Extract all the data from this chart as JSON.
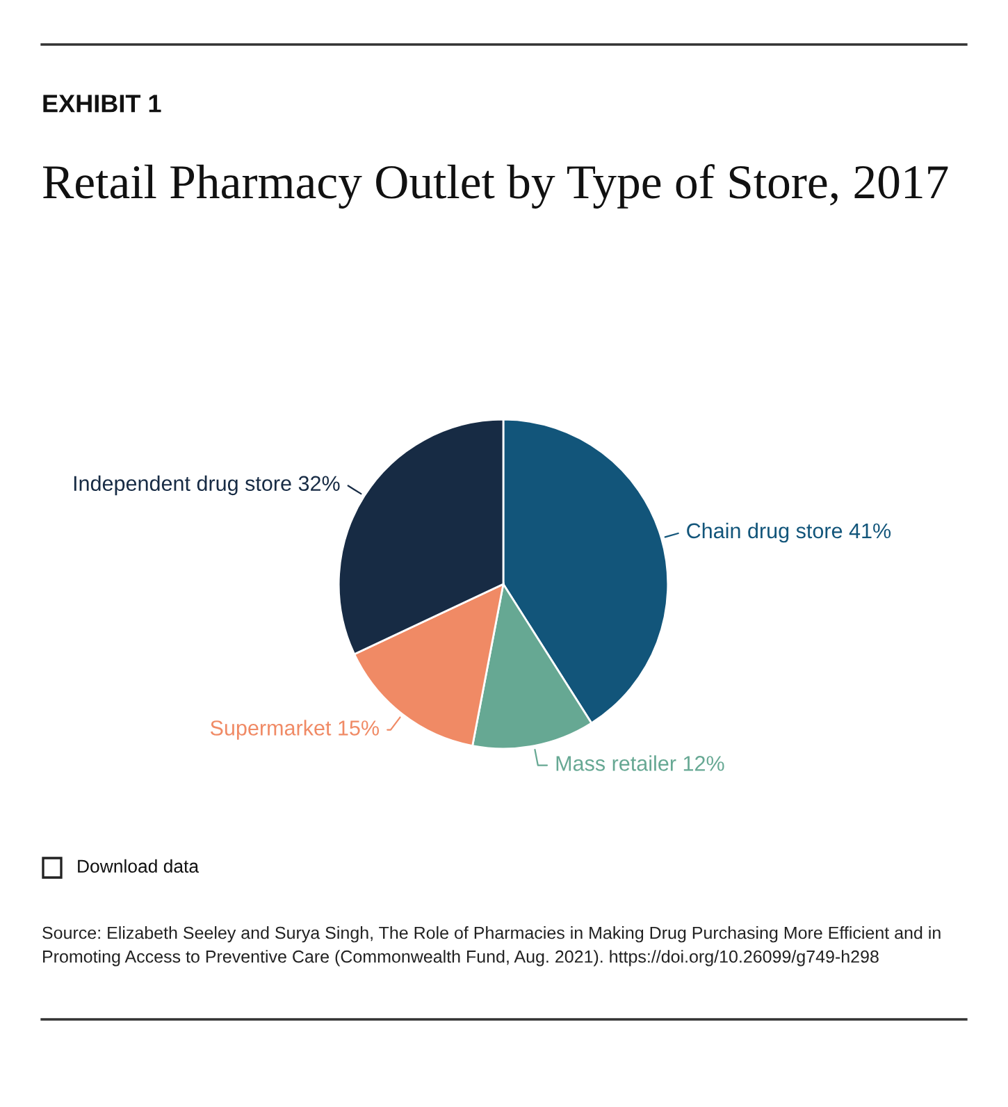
{
  "chart_data": {
    "type": "pie",
    "title": "Retail Pharmacy Outlet by Type of Store, 2017",
    "categories": [
      "Chain drug store",
      "Mass retailer",
      "Supermarket",
      "Independent drug store"
    ],
    "values": [
      41,
      12,
      15,
      32
    ],
    "colors": [
      "#12557a",
      "#66a893",
      "#f08a65",
      "#172b44"
    ],
    "value_labels": [
      "41%",
      "12%",
      "15%",
      "32%"
    ],
    "annotations": [
      "EXHIBIT 1",
      "Download data",
      "Source: Elizabeth Seeley and Surya Singh, The Role of Pharmacies in Making Drug Purchasing More Efficient and in Promoting Access to Preventive Care (Commonwealth Fund, Aug. 2021). https://doi.org/10.26099/g749-h298"
    ],
    "legend": false
  }
}
